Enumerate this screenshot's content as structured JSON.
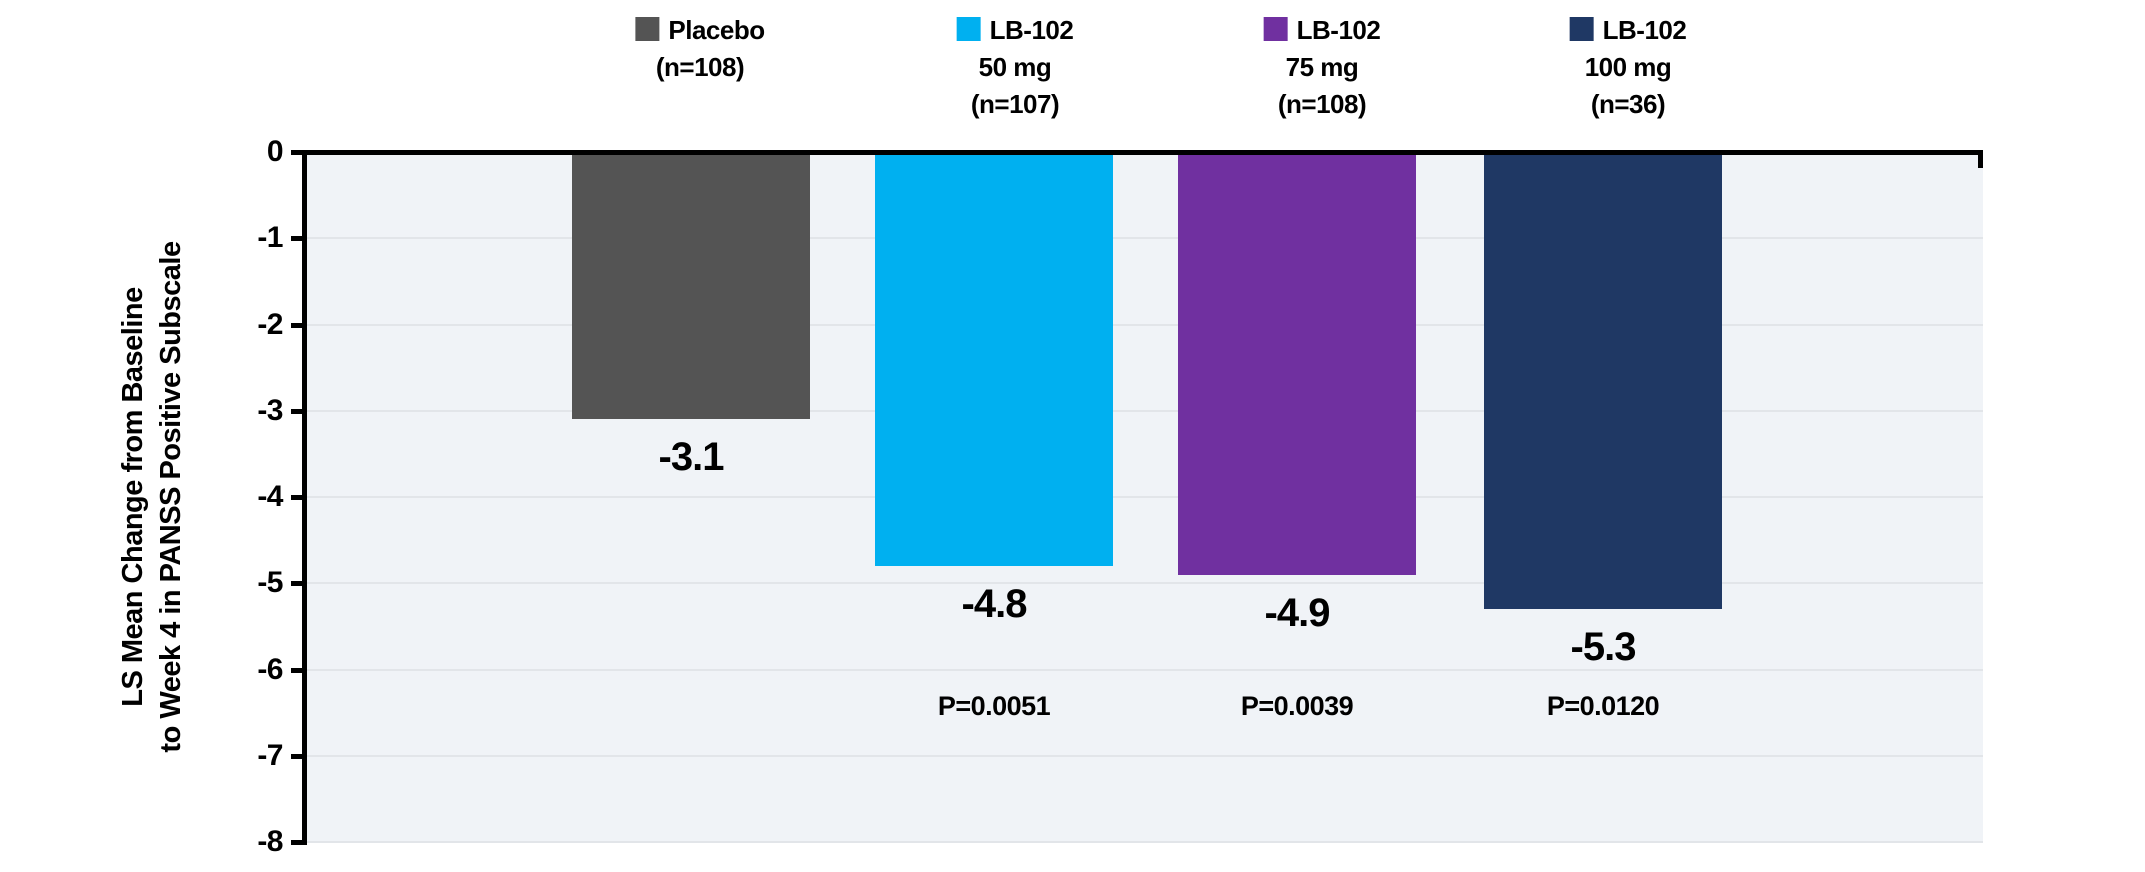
{
  "chart_data": {
    "type": "bar",
    "title": "",
    "ylabel_lines": [
      "LS Mean Change from Baseline",
      "to Week 4 in PANSS Positive Subscale"
    ],
    "ylim": [
      -8,
      0
    ],
    "ytick_labels": [
      "0",
      "-1",
      "-2",
      "-3",
      "-4",
      "-5",
      "-6",
      "-7",
      "-8"
    ],
    "grid": true,
    "legend_position": "top",
    "plot_bg_color": "#F0F3F7",
    "gridline_color": "#E2E5E9",
    "axis_color": "#000000",
    "series": [
      {
        "name": "Placebo",
        "legend_lines": [
          "Placebo",
          "(n=108)"
        ],
        "n": 108,
        "value": -3.1,
        "value_label": "-3.1",
        "p_label": "",
        "color": "#545454"
      },
      {
        "name": "LB-102 50 mg",
        "legend_lines": [
          "LB-102",
          "50 mg",
          "(n=107)"
        ],
        "n": 107,
        "value": -4.8,
        "value_label": "-4.8",
        "p_label": "P=0.0051",
        "color": "#00B0F0"
      },
      {
        "name": "LB-102 75 mg",
        "legend_lines": [
          "LB-102",
          "75 mg",
          "(n=108)"
        ],
        "n": 108,
        "value": -4.9,
        "value_label": "-4.9",
        "p_label": "P=0.0039",
        "color": "#7030A0"
      },
      {
        "name": "LB-102 100 mg",
        "legend_lines": [
          "LB-102",
          "100 mg",
          "(n=36)"
        ],
        "n": 36,
        "value": -5.3,
        "value_label": "-5.3",
        "p_label": "P=0.0120",
        "color": "#1F3864"
      }
    ]
  }
}
